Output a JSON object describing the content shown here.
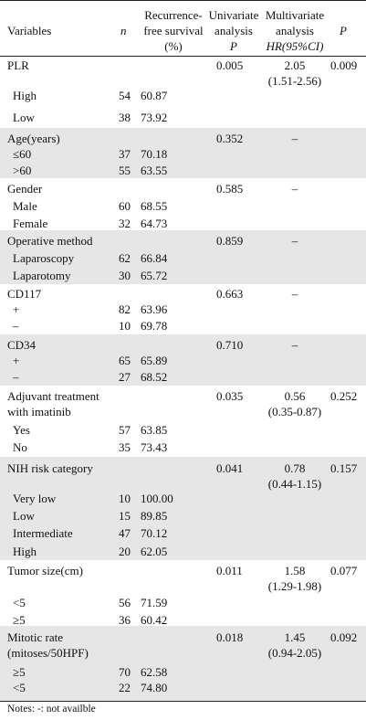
{
  "headers": {
    "variables": "Variables",
    "n": "n",
    "rfs_line1": "Recurrence-",
    "rfs_line2": "free survival",
    "rfs_line3": "(%)",
    "uni_line1": "Univariate",
    "uni_line2": "analysis",
    "uni_line3": "P",
    "multi_line1": "Multivariate",
    "multi_line2": "analysis",
    "multi_line3": "HR(95%CI)",
    "p": "P"
  },
  "rows": [
    {
      "type": "var",
      "label": "PLR",
      "uni": "0.005",
      "hr": "2.05",
      "ci": "(1.51-2.56)",
      "p": "0.009"
    },
    {
      "type": "sub",
      "label": "High",
      "n": "54",
      "rfs": "60.87"
    },
    {
      "type": "sub",
      "label": "Low",
      "n": "38",
      "rfs": "73.92"
    },
    {
      "type": "var",
      "label": "Age(years)",
      "uni": "0.352",
      "hr": "–"
    },
    {
      "type": "sub",
      "label": "≤60",
      "n": "37",
      "rfs": "70.18"
    },
    {
      "type": "sub",
      "label": ">60",
      "n": "55",
      "rfs": "63.55"
    },
    {
      "type": "var",
      "label": "Gender",
      "uni": "0.585",
      "hr": "–"
    },
    {
      "type": "sub",
      "label": "Male",
      "n": "60",
      "rfs": "68.55"
    },
    {
      "type": "sub",
      "label": "Female",
      "n": "32",
      "rfs": "64.73"
    },
    {
      "type": "var",
      "label": "Operative method",
      "uni": "0.859",
      "hr": "–"
    },
    {
      "type": "sub",
      "label": "Laparoscopy",
      "n": "62",
      "rfs": "66.84"
    },
    {
      "type": "sub",
      "label": "Laparotomy",
      "n": "30",
      "rfs": "65.72"
    },
    {
      "type": "var",
      "label": "CD117",
      "uni": "0.663",
      "hr": "–"
    },
    {
      "type": "sub",
      "label": "+",
      "n": "82",
      "rfs": "63.96"
    },
    {
      "type": "sub",
      "label": "–",
      "n": "10",
      "rfs": "69.78"
    },
    {
      "type": "var",
      "label": "CD34",
      "uni": "0.710",
      "hr": "–"
    },
    {
      "type": "sub",
      "label": "+",
      "n": "65",
      "rfs": "65.89"
    },
    {
      "type": "sub",
      "label": "–",
      "n": "27",
      "rfs": "68.52"
    },
    {
      "type": "var",
      "label": "Adjuvant treatment",
      "label2": "with imatinib",
      "uni": "0.035",
      "hr": "0.56",
      "ci": "(0.35-0.87)",
      "p": "0.252"
    },
    {
      "type": "sub",
      "label": "Yes",
      "n": "57",
      "rfs": "63.85"
    },
    {
      "type": "sub",
      "label": "No",
      "n": "35",
      "rfs": "73.43"
    },
    {
      "type": "var",
      "label": "NIH risk category",
      "uni": "0.041",
      "hr": "0.78",
      "ci": "(0.44-1.15)",
      "p": "0.157"
    },
    {
      "type": "sub",
      "label": "Very low",
      "n": "10",
      "rfs": "100.00"
    },
    {
      "type": "sub",
      "label": "Low",
      "n": "15",
      "rfs": "89.85"
    },
    {
      "type": "sub",
      "label": "Intermediate",
      "n": "47",
      "rfs": "70.12"
    },
    {
      "type": "sub",
      "label": "High",
      "n": "20",
      "rfs": "62.05"
    },
    {
      "type": "var",
      "label": "Tumor size(cm)",
      "uni": "0.011",
      "hr": "1.58",
      "ci": "(1.29-1.98)",
      "p": "0.077"
    },
    {
      "type": "sub",
      "label": "<5",
      "n": "56",
      "rfs": "71.59"
    },
    {
      "type": "sub",
      "label": "≥5",
      "n": "36",
      "rfs": "60.42"
    },
    {
      "type": "var",
      "label": "Mitotic rate",
      "label2": "(mitoses/50HPF)",
      "uni": "0.018",
      "hr": "1.45",
      "ci": "(0.94-2.05)",
      "p": "0.092"
    },
    {
      "type": "sub",
      "label": "≥5",
      "n": "70",
      "rfs": "62.58"
    },
    {
      "type": "sub",
      "label": "<5",
      "n": "22",
      "rfs": "74.80"
    }
  ],
  "notes": "Notes: -: not availble"
}
